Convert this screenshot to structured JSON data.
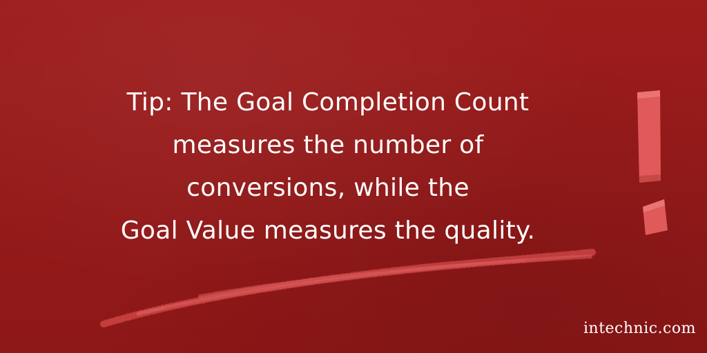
{
  "tip": {
    "lines": [
      "Tip: The Goal Completion Count",
      "measures the number of",
      "conversions, while the",
      "Goal Value measures the quality."
    ]
  },
  "watermark": "intechnic.com",
  "icons": {
    "exclamation": "exclamation-mark-icon",
    "stroke": "chalk-underline"
  },
  "colors": {
    "background": "#961a1a",
    "chalk": "#e05a5a",
    "text": "#ffffff"
  }
}
